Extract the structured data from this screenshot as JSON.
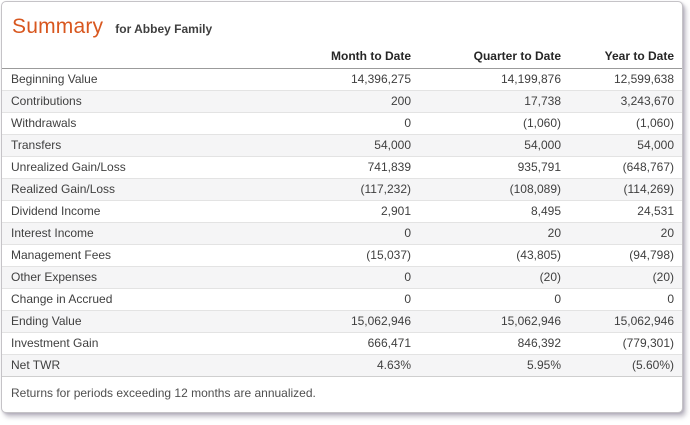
{
  "header": {
    "title": "Summary",
    "subtitle": "for Abbey Family"
  },
  "table": {
    "columns": [
      "Month to Date",
      "Quarter to Date",
      "Year to Date"
    ],
    "rows": [
      {
        "label": "Beginning Value",
        "month": "14,396,275",
        "quarter": "14,199,876",
        "year": "12,599,638"
      },
      {
        "label": "Contributions",
        "month": "200",
        "quarter": "17,738",
        "year": "3,243,670"
      },
      {
        "label": "Withdrawals",
        "month": "0",
        "quarter": "(1,060)",
        "year": "(1,060)"
      },
      {
        "label": "Transfers",
        "month": "54,000",
        "quarter": "54,000",
        "year": "54,000"
      },
      {
        "label": "Unrealized Gain/Loss",
        "month": "741,839",
        "quarter": "935,791",
        "year": "(648,767)"
      },
      {
        "label": "Realized Gain/Loss",
        "month": "(117,232)",
        "quarter": "(108,089)",
        "year": "(114,269)"
      },
      {
        "label": "Dividend Income",
        "month": "2,901",
        "quarter": "8,495",
        "year": "24,531"
      },
      {
        "label": "Interest Income",
        "month": "0",
        "quarter": "20",
        "year": "20"
      },
      {
        "label": "Management Fees",
        "month": "(15,037)",
        "quarter": "(43,805)",
        "year": "(94,798)"
      },
      {
        "label": "Other Expenses",
        "month": "0",
        "quarter": "(20)",
        "year": "(20)"
      },
      {
        "label": "Change in Accrued",
        "month": "0",
        "quarter": "0",
        "year": "0"
      },
      {
        "label": "Ending Value",
        "month": "15,062,946",
        "quarter": "15,062,946",
        "year": "15,062,946"
      },
      {
        "label": "Investment Gain",
        "month": "666,471",
        "quarter": "846,392",
        "year": "(779,301)"
      },
      {
        "label": "Net TWR",
        "month": "4.63%",
        "quarter": "5.95%",
        "year": "(5.60%)"
      }
    ]
  },
  "footer": {
    "note": "Returns for periods exceeding 12 months are annualized."
  },
  "colors": {
    "accent": "#d8571f",
    "text": "#3f3f3f",
    "stripe": "#f5f5f6",
    "panel_border": "#c5c3c7"
  }
}
